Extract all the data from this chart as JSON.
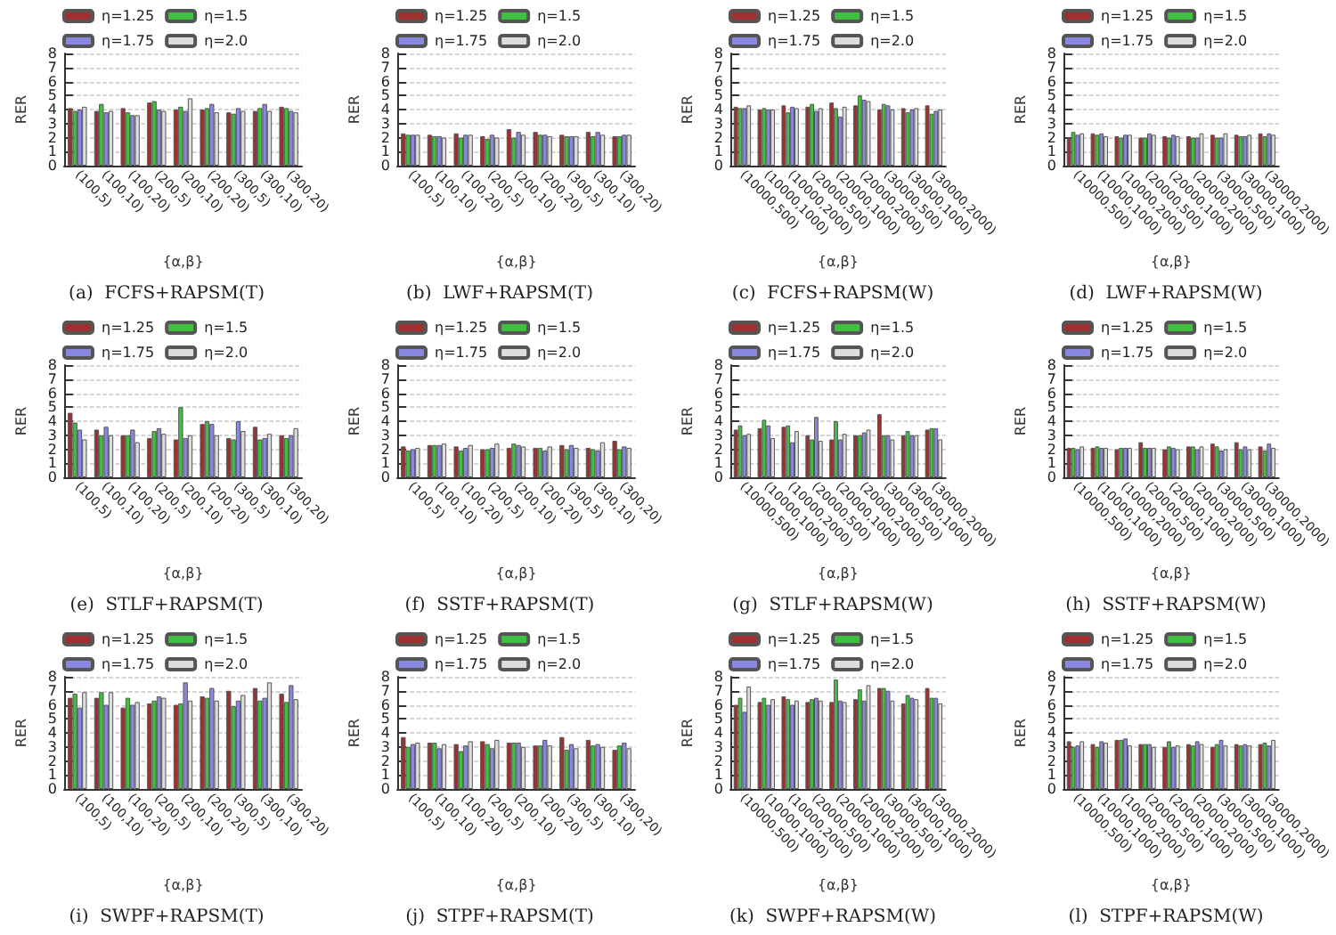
{
  "chart_data": [
    {
      "type": "bar",
      "title": "(a)  FCFS+RAPSM(T)",
      "xlabel": "{α,β}",
      "ylabel": "RER",
      "categories": [
        "(100,5)",
        "(100,10)",
        "(100,20)",
        "(200,5)",
        "(200,10)",
        "(200,20)",
        "(300,5)",
        "(300,10)",
        "(300,20)"
      ],
      "ylim": [
        0,
        8
      ],
      "yticks": [
        0,
        1,
        2,
        3,
        4,
        5,
        6,
        7,
        8
      ],
      "grid": "y",
      "legend": "top",
      "series": [
        {
          "name": "η=1.25",
          "color": "#a03030",
          "values": [
            4.1,
            3.9,
            4.1,
            4.5,
            4.0,
            4.0,
            3.8,
            3.9,
            4.2
          ]
        },
        {
          "name": "η=1.5",
          "color": "#40c040",
          "values": [
            3.9,
            4.4,
            3.8,
            4.6,
            4.2,
            4.1,
            3.7,
            4.1,
            4.1
          ]
        },
        {
          "name": "η=1.75",
          "color": "#8888e0",
          "values": [
            4.0,
            3.8,
            3.6,
            4.0,
            3.9,
            4.4,
            4.1,
            4.4,
            3.9
          ]
        },
        {
          "name": "η=2.0",
          "color": "#dddddd",
          "values": [
            4.2,
            3.9,
            3.6,
            3.9,
            4.8,
            3.8,
            3.9,
            3.9,
            3.8
          ]
        }
      ]
    },
    {
      "type": "bar",
      "title": "(b)  LWF+RAPSM(T)",
      "xlabel": "{α,β}",
      "ylabel": "RER",
      "categories": [
        "(100,5)",
        "(100,10)",
        "(100,20)",
        "(200,5)",
        "(200,10)",
        "(200,20)",
        "(300,5)",
        "(300,10)",
        "(300,20)"
      ],
      "ylim": [
        0,
        8
      ],
      "yticks": [
        0,
        1,
        2,
        3,
        4,
        5,
        6,
        7,
        8
      ],
      "grid": "y",
      "legend": "top",
      "series": [
        {
          "name": "η=1.25",
          "color": "#a03030",
          "values": [
            2.3,
            2.2,
            2.3,
            2.1,
            2.6,
            2.4,
            2.2,
            2.4,
            2.1
          ]
        },
        {
          "name": "η=1.5",
          "color": "#40c040",
          "values": [
            2.2,
            2.1,
            2.0,
            1.9,
            2.0,
            2.2,
            2.1,
            2.1,
            2.1
          ]
        },
        {
          "name": "η=1.75",
          "color": "#8888e0",
          "values": [
            2.2,
            2.1,
            2.2,
            2.2,
            2.4,
            2.2,
            2.1,
            2.4,
            2.2
          ]
        },
        {
          "name": "η=2.0",
          "color": "#dddddd",
          "values": [
            2.2,
            2.0,
            2.2,
            2.0,
            2.2,
            2.1,
            2.1,
            2.2,
            2.2
          ]
        }
      ]
    },
    {
      "type": "bar",
      "title": "(c)  FCFS+RAPSM(W)",
      "xlabel": "{α,β}",
      "ylabel": "RER",
      "categories": [
        "(10000,500)",
        "(10000,1000)",
        "(10000,2000)",
        "(20000,500)",
        "(20000,1000)",
        "(20000,2000)",
        "(30000,500)",
        "(30000,1000)",
        "(30000,2000)"
      ],
      "ylim": [
        0,
        8
      ],
      "yticks": [
        0,
        1,
        2,
        3,
        4,
        5,
        6,
        7,
        8
      ],
      "grid": "y",
      "legend": "top",
      "series": [
        {
          "name": "η=1.25",
          "color": "#a03030",
          "values": [
            4.2,
            4.0,
            4.3,
            4.2,
            4.5,
            4.3,
            4.0,
            4.1,
            4.3
          ]
        },
        {
          "name": "η=1.5",
          "color": "#40c040",
          "values": [
            4.1,
            4.1,
            3.8,
            4.4,
            4.1,
            5.0,
            4.4,
            3.8,
            3.7
          ]
        },
        {
          "name": "η=1.75",
          "color": "#8888e0",
          "values": [
            4.1,
            4.0,
            4.2,
            3.9,
            3.5,
            4.7,
            4.3,
            4.0,
            3.9
          ]
        },
        {
          "name": "η=2.0",
          "color": "#dddddd",
          "values": [
            4.3,
            4.0,
            4.1,
            4.1,
            4.2,
            4.6,
            4.0,
            4.1,
            4.0
          ]
        }
      ]
    },
    {
      "type": "bar",
      "title": "(d)  LWF+RAPSM(W)",
      "xlabel": "{α,β}",
      "ylabel": "RER",
      "categories": [
        "(10000,500)",
        "(10000,1000)",
        "(10000,2000)",
        "(20000,500)",
        "(20000,1000)",
        "(20000,2000)",
        "(30000,500)",
        "(30000,1000)",
        "(30000,2000)"
      ],
      "ylim": [
        0,
        8
      ],
      "yticks": [
        0,
        1,
        2,
        3,
        4,
        5,
        6,
        7,
        8
      ],
      "grid": "y",
      "legend": "top",
      "series": [
        {
          "name": "η=1.25",
          "color": "#a03030",
          "values": [
            2.0,
            2.3,
            2.1,
            2.0,
            2.1,
            2.1,
            2.2,
            2.2,
            2.3
          ]
        },
        {
          "name": "η=1.5",
          "color": "#40c040",
          "values": [
            2.4,
            2.2,
            2.0,
            2.0,
            2.0,
            2.0,
            2.0,
            2.1,
            2.1
          ]
        },
        {
          "name": "η=1.75",
          "color": "#8888e0",
          "values": [
            2.2,
            2.3,
            2.2,
            2.3,
            2.2,
            2.0,
            2.0,
            2.1,
            2.3
          ]
        },
        {
          "name": "η=2.0",
          "color": "#dddddd",
          "values": [
            2.3,
            2.1,
            2.2,
            2.2,
            2.1,
            2.3,
            2.3,
            2.2,
            2.2
          ]
        }
      ]
    },
    {
      "type": "bar",
      "title": "(e)  STLF+RAPSM(T)",
      "xlabel": "{α,β}",
      "ylabel": "RER",
      "categories": [
        "(100,5)",
        "(100,10)",
        "(100,20)",
        "(200,5)",
        "(200,10)",
        "(200,20)",
        "(300,5)",
        "(300,10)",
        "(300,20)"
      ],
      "ylim": [
        0,
        8
      ],
      "yticks": [
        0,
        1,
        2,
        3,
        4,
        5,
        6,
        7,
        8
      ],
      "grid": "y",
      "legend": "top",
      "series": [
        {
          "name": "η=1.25",
          "color": "#a03030",
          "values": [
            4.6,
            3.4,
            3.0,
            2.8,
            2.7,
            3.8,
            2.8,
            3.6,
            3.0
          ]
        },
        {
          "name": "η=1.5",
          "color": "#40c040",
          "values": [
            3.9,
            3.0,
            3.0,
            3.3,
            5.0,
            4.0,
            2.7,
            2.7,
            2.8
          ]
        },
        {
          "name": "η=1.75",
          "color": "#8888e0",
          "values": [
            3.4,
            3.6,
            3.4,
            3.5,
            2.8,
            3.8,
            4.0,
            2.8,
            3.0
          ]
        },
        {
          "name": "η=2.0",
          "color": "#dddddd",
          "values": [
            2.7,
            3.0,
            2.5,
            3.1,
            3.0,
            3.0,
            3.3,
            3.1,
            3.5
          ]
        }
      ]
    },
    {
      "type": "bar",
      "title": "(f)  SSTF+RAPSM(T)",
      "xlabel": "{α,β}",
      "ylabel": "RER",
      "categories": [
        "(100,5)",
        "(100,10)",
        "(100,20)",
        "(200,5)",
        "(200,10)",
        "(200,20)",
        "(300,5)",
        "(300,10)",
        "(300,20)"
      ],
      "ylim": [
        0,
        8
      ],
      "yticks": [
        0,
        1,
        2,
        3,
        4,
        5,
        6,
        7,
        8
      ],
      "grid": "y",
      "legend": "top",
      "series": [
        {
          "name": "η=1.25",
          "color": "#a03030",
          "values": [
            2.2,
            2.3,
            2.2,
            2.0,
            2.1,
            2.1,
            2.3,
            2.1,
            2.6
          ]
        },
        {
          "name": "η=1.5",
          "color": "#40c040",
          "values": [
            1.9,
            2.3,
            1.9,
            2.0,
            2.4,
            2.1,
            2.0,
            2.0,
            2.0
          ]
        },
        {
          "name": "η=1.75",
          "color": "#8888e0",
          "values": [
            2.0,
            2.3,
            2.1,
            2.1,
            2.3,
            1.9,
            2.3,
            1.9,
            2.2
          ]
        },
        {
          "name": "η=2.0",
          "color": "#dddddd",
          "values": [
            2.1,
            2.4,
            2.3,
            2.4,
            2.2,
            2.2,
            2.1,
            2.5,
            2.1
          ]
        }
      ]
    },
    {
      "type": "bar",
      "title": "(g)  STLF+RAPSM(W)",
      "xlabel": "{α,β}",
      "ylabel": "RER",
      "categories": [
        "(10000,500)",
        "(10000,1000)",
        "(10000,2000)",
        "(20000,500)",
        "(20000,1000)",
        "(20000,2000)",
        "(30000,500)",
        "(30000,1000)",
        "(30000,2000)"
      ],
      "ylim": [
        0,
        8
      ],
      "yticks": [
        0,
        1,
        2,
        3,
        4,
        5,
        6,
        7,
        8
      ],
      "grid": "y",
      "legend": "top",
      "series": [
        {
          "name": "η=1.25",
          "color": "#a03030",
          "values": [
            3.4,
            3.5,
            3.6,
            3.0,
            2.7,
            3.0,
            4.5,
            3.0,
            3.4
          ]
        },
        {
          "name": "η=1.5",
          "color": "#40c040",
          "values": [
            3.7,
            4.1,
            3.7,
            2.7,
            4.0,
            3.0,
            3.0,
            3.3,
            3.5
          ]
        },
        {
          "name": "η=1.75",
          "color": "#8888e0",
          "values": [
            3.0,
            3.7,
            2.5,
            4.3,
            2.7,
            3.2,
            3.0,
            3.0,
            3.5
          ]
        },
        {
          "name": "η=2.0",
          "color": "#dddddd",
          "values": [
            3.1,
            2.8,
            3.3,
            2.6,
            3.1,
            3.4,
            2.7,
            3.0,
            2.7
          ]
        }
      ]
    },
    {
      "type": "bar",
      "title": "(h)  SSTF+RAPSM(W)",
      "xlabel": "{α,β}",
      "ylabel": "RER",
      "categories": [
        "(10000,500)",
        "(10000,1000)",
        "(10000,2000)",
        "(20000,500)",
        "(20000,1000)",
        "(20000,2000)",
        "(30000,500)",
        "(30000,1000)",
        "(30000,2000)"
      ],
      "ylim": [
        0,
        8
      ],
      "yticks": [
        0,
        1,
        2,
        3,
        4,
        5,
        6,
        7,
        8
      ],
      "grid": "y",
      "legend": "top",
      "series": [
        {
          "name": "η=1.25",
          "color": "#a03030",
          "values": [
            2.1,
            2.1,
            2.0,
            2.5,
            2.0,
            2.2,
            2.4,
            2.5,
            2.2
          ]
        },
        {
          "name": "η=1.5",
          "color": "#40c040",
          "values": [
            2.1,
            2.2,
            2.1,
            2.1,
            2.2,
            2.2,
            2.2,
            2.0,
            1.9
          ]
        },
        {
          "name": "η=1.75",
          "color": "#8888e0",
          "values": [
            2.0,
            2.1,
            2.1,
            2.1,
            2.1,
            2.0,
            1.9,
            2.2,
            2.4
          ]
        },
        {
          "name": "η=2.0",
          "color": "#dddddd",
          "values": [
            2.2,
            2.1,
            2.1,
            2.1,
            2.0,
            2.2,
            2.0,
            2.0,
            2.1
          ]
        }
      ]
    },
    {
      "type": "bar",
      "title": "(i)  SWPF+RAPSM(T)",
      "xlabel": "{α,β}",
      "ylabel": "RER",
      "categories": [
        "(100,5)",
        "(100,10)",
        "(100,20)",
        "(200,5)",
        "(200,10)",
        "(200,20)",
        "(300,5)",
        "(300,10)",
        "(300,20)"
      ],
      "ylim": [
        0,
        8
      ],
      "yticks": [
        0,
        1,
        2,
        3,
        4,
        5,
        6,
        7,
        8
      ],
      "grid": "y",
      "legend": "top",
      "series": [
        {
          "name": "η=1.25",
          "color": "#a03030",
          "values": [
            6.5,
            6.5,
            5.8,
            6.1,
            6.0,
            6.6,
            7.0,
            7.2,
            6.8
          ]
        },
        {
          "name": "η=1.5",
          "color": "#40c040",
          "values": [
            6.8,
            6.9,
            6.5,
            6.3,
            6.1,
            6.5,
            5.9,
            6.3,
            6.2
          ]
        },
        {
          "name": "η=1.75",
          "color": "#8888e0",
          "values": [
            5.8,
            6.0,
            6.0,
            6.6,
            7.6,
            7.2,
            6.3,
            6.5,
            7.4
          ]
        },
        {
          "name": "η=2.0",
          "color": "#dddddd",
          "values": [
            6.9,
            6.9,
            6.2,
            6.5,
            6.3,
            6.3,
            6.7,
            7.6,
            6.4
          ]
        }
      ]
    },
    {
      "type": "bar",
      "title": "(j)  STPF+RAPSM(T)",
      "xlabel": "{α,β}",
      "ylabel": "RER",
      "categories": [
        "(100,5)",
        "(100,10)",
        "(100,20)",
        "(200,5)",
        "(200,10)",
        "(200,20)",
        "(300,5)",
        "(300,10)",
        "(300,20)"
      ],
      "ylim": [
        0,
        8
      ],
      "yticks": [
        0,
        1,
        2,
        3,
        4,
        5,
        6,
        7,
        8
      ],
      "grid": "y",
      "legend": "top",
      "series": [
        {
          "name": "η=1.25",
          "color": "#a03030",
          "values": [
            3.7,
            3.3,
            3.2,
            3.4,
            3.3,
            3.1,
            3.7,
            3.5,
            2.8
          ]
        },
        {
          "name": "η=1.5",
          "color": "#40c040",
          "values": [
            3.0,
            3.3,
            2.7,
            3.2,
            3.3,
            3.1,
            2.8,
            3.1,
            3.1
          ]
        },
        {
          "name": "η=1.75",
          "color": "#8888e0",
          "values": [
            3.2,
            2.9,
            3.1,
            2.9,
            3.3,
            3.5,
            3.2,
            3.2,
            3.3
          ]
        },
        {
          "name": "η=2.0",
          "color": "#dddddd",
          "values": [
            3.3,
            3.2,
            3.4,
            3.5,
            3.0,
            3.1,
            2.9,
            3.0,
            2.9
          ]
        }
      ]
    },
    {
      "type": "bar",
      "title": "(k)  SWPF+RAPSM(W)",
      "xlabel": "{α,β}",
      "ylabel": "RER",
      "categories": [
        "(10000,500)",
        "(10000,1000)",
        "(10000,2000)",
        "(20000,500)",
        "(20000,1000)",
        "(20000,2000)",
        "(30000,500)",
        "(30000,1000)",
        "(30000,2000)"
      ],
      "ylim": [
        0,
        8
      ],
      "yticks": [
        0,
        1,
        2,
        3,
        4,
        5,
        6,
        7,
        8
      ],
      "grid": "y",
      "legend": "top",
      "series": [
        {
          "name": "η=1.25",
          "color": "#a03030",
          "values": [
            6.0,
            6.2,
            6.6,
            6.2,
            6.2,
            6.4,
            7.2,
            6.1,
            7.2
          ]
        },
        {
          "name": "η=1.5",
          "color": "#40c040",
          "values": [
            6.5,
            6.5,
            6.4,
            6.4,
            7.8,
            7.1,
            7.2,
            6.7,
            6.5
          ]
        },
        {
          "name": "η=1.75",
          "color": "#8888e0",
          "values": [
            5.5,
            6.0,
            6.0,
            6.5,
            6.3,
            6.3,
            7.0,
            6.5,
            6.5
          ]
        },
        {
          "name": "η=2.0",
          "color": "#dddddd",
          "values": [
            7.3,
            6.4,
            6.3,
            6.3,
            6.2,
            7.4,
            6.3,
            6.4,
            6.1
          ]
        }
      ]
    },
    {
      "type": "bar",
      "title": "(l)  STPF+RAPSM(W)",
      "xlabel": "{α,β}",
      "ylabel": "RER",
      "categories": [
        "(10000,500)",
        "(10000,1000)",
        "(10000,2000)",
        "(20000,500)",
        "(20000,1000)",
        "(20000,2000)",
        "(30000,500)",
        "(30000,1000)",
        "(30000,2000)"
      ],
      "ylim": [
        0,
        8
      ],
      "yticks": [
        0,
        1,
        2,
        3,
        4,
        5,
        6,
        7,
        8
      ],
      "grid": "y",
      "legend": "top",
      "series": [
        {
          "name": "η=1.25",
          "color": "#a03030",
          "values": [
            3.4,
            3.2,
            3.5,
            3.2,
            3.0,
            3.2,
            3.0,
            3.2,
            3.2
          ]
        },
        {
          "name": "η=1.5",
          "color": "#40c040",
          "values": [
            3.0,
            3.0,
            3.5,
            3.2,
            3.4,
            3.1,
            3.2,
            3.1,
            3.3
          ]
        },
        {
          "name": "η=1.75",
          "color": "#8888e0",
          "values": [
            3.1,
            3.4,
            3.6,
            3.2,
            3.0,
            3.4,
            3.5,
            3.2,
            3.1
          ]
        },
        {
          "name": "η=2.0",
          "color": "#dddddd",
          "values": [
            3.4,
            3.3,
            3.1,
            3.0,
            3.1,
            3.2,
            3.1,
            3.1,
            3.5
          ]
        }
      ]
    }
  ]
}
